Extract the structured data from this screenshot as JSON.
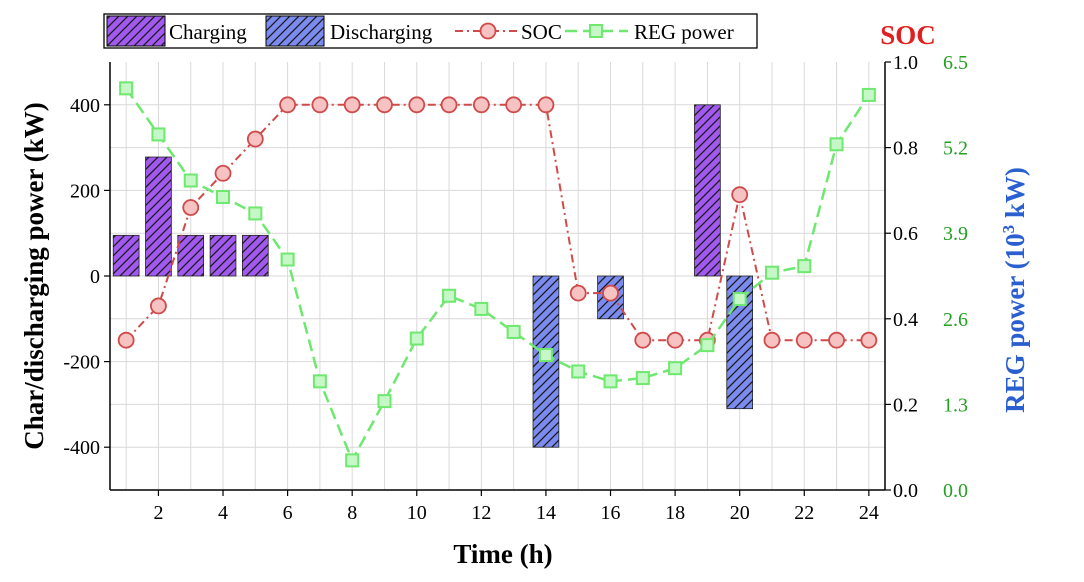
{
  "chart_data": {
    "type": "bar+line",
    "x": [
      1,
      2,
      3,
      4,
      5,
      6,
      7,
      8,
      9,
      10,
      11,
      12,
      13,
      14,
      15,
      16,
      17,
      18,
      19,
      20,
      21,
      22,
      23,
      24
    ],
    "xlabel": "Time (h)",
    "xticks": [
      2,
      4,
      6,
      8,
      10,
      12,
      14,
      16,
      18,
      20,
      22,
      24
    ],
    "xlim": [
      0.5,
      24.5
    ],
    "ylabel": "Char/discharging power (kW)",
    "ylim": [
      -500,
      500
    ],
    "yticks": [
      -400,
      -200,
      0,
      200,
      400
    ],
    "y2_title": "SOC",
    "y2lim": [
      0.0,
      1.0
    ],
    "y2ticks": [
      "0.0",
      "0.2",
      "0.4",
      "0.6",
      "0.8",
      "1.0"
    ],
    "y3label": "REG power (10",
    "y3label_sup": "3",
    "y3label_tail": " kW)",
    "y3lim": [
      0.0,
      6.5
    ],
    "y3ticks": [
      "0.0",
      "1.3",
      "2.6",
      "3.9",
      "5.2",
      "6.5"
    ],
    "grid": true,
    "legend_position": "top",
    "series": [
      {
        "name": "Charging",
        "type": "bar",
        "color": "#a259f0",
        "points": [
          [
            1,
            95
          ],
          [
            2,
            278
          ],
          [
            3,
            95
          ],
          [
            4,
            95
          ],
          [
            5,
            95
          ],
          [
            19,
            400
          ]
        ]
      },
      {
        "name": "Discharging",
        "type": "bar",
        "color": "#7b8bf0",
        "points": [
          [
            14,
            -400
          ],
          [
            16,
            -100
          ],
          [
            20,
            -310
          ]
        ]
      },
      {
        "name": "SOC",
        "type": "line",
        "axis": "y2",
        "color": "#d04a4a",
        "values": [
          0.35,
          0.43,
          0.66,
          0.74,
          0.82,
          0.9,
          0.9,
          0.9,
          0.9,
          0.9,
          0.9,
          0.9,
          0.9,
          0.9,
          0.46,
          0.46,
          0.35,
          0.35,
          0.35,
          0.69,
          0.35,
          0.35,
          0.35,
          0.35
        ]
      },
      {
        "name": "REG power",
        "type": "line",
        "axis": "y3",
        "color": "#6ee86e",
        "values": [
          6.1,
          5.4,
          4.7,
          4.45,
          4.2,
          3.5,
          1.65,
          0.45,
          1.35,
          2.3,
          2.95,
          2.75,
          2.4,
          2.05,
          1.8,
          1.65,
          1.7,
          1.85,
          2.2,
          2.9,
          3.3,
          3.4,
          5.25,
          6.0
        ]
      }
    ]
  },
  "colors": {
    "soc_title": "#e02020",
    "y3_axis": "#2a5fd0",
    "y3_ticks": "#22a022",
    "grid": "#d9d9d9"
  }
}
